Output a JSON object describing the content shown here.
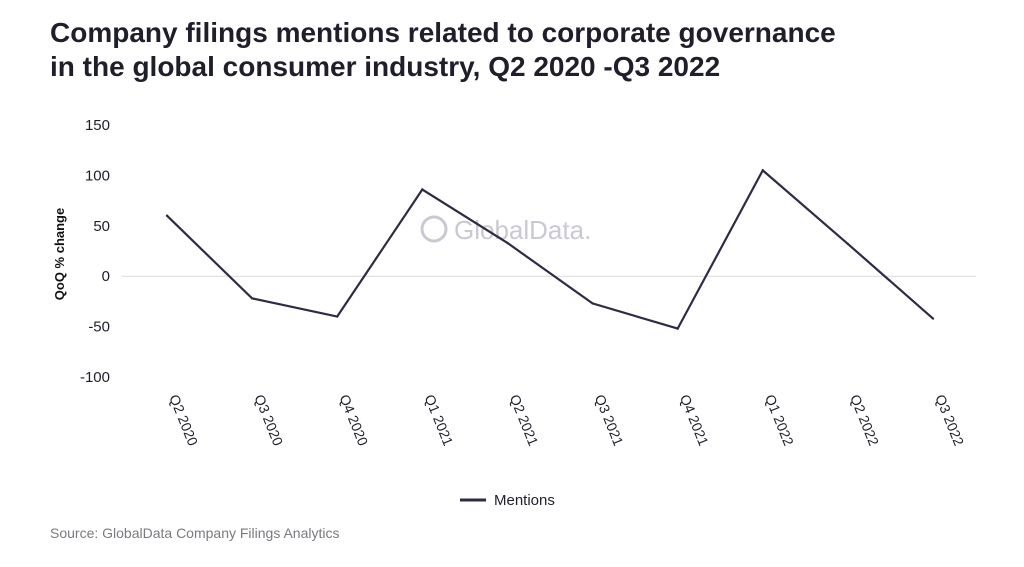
{
  "title_line1": "Company filings mentions related to corporate governance",
  "title_line2": "in the global consumer industry, Q2 2020 -Q3 2022",
  "source": "Source: GlobalData Company Filings Analytics",
  "watermark": "GlobalData.",
  "colors": {
    "line": "#2e2b45",
    "zero_line": "#d9d9d9",
    "watermark": "#c9c9d1"
  },
  "chart_data": {
    "type": "line",
    "title": "Company filings mentions related to corporate governance in the global consumer industry, Q2 2020 -Q3 2022",
    "xlabel": "",
    "ylabel": "QoQ % change",
    "ylim": [
      -100,
      150
    ],
    "yticks": [
      150,
      100,
      50,
      0,
      -50,
      -100
    ],
    "categories": [
      "Q2 2020",
      "Q3 2020",
      "Q4 2020",
      "Q1 2021",
      "Q2 2021",
      "Q3 2021",
      "Q4 2021",
      "Q1 2022",
      "Q2 2022",
      "Q3 2022"
    ],
    "series": [
      {
        "name": "Mentions",
        "values": [
          60,
          -22,
          -40,
          86,
          33,
          -27,
          -52,
          105,
          32,
          -42
        ]
      }
    ],
    "grid": false,
    "legend_position": "bottom"
  }
}
